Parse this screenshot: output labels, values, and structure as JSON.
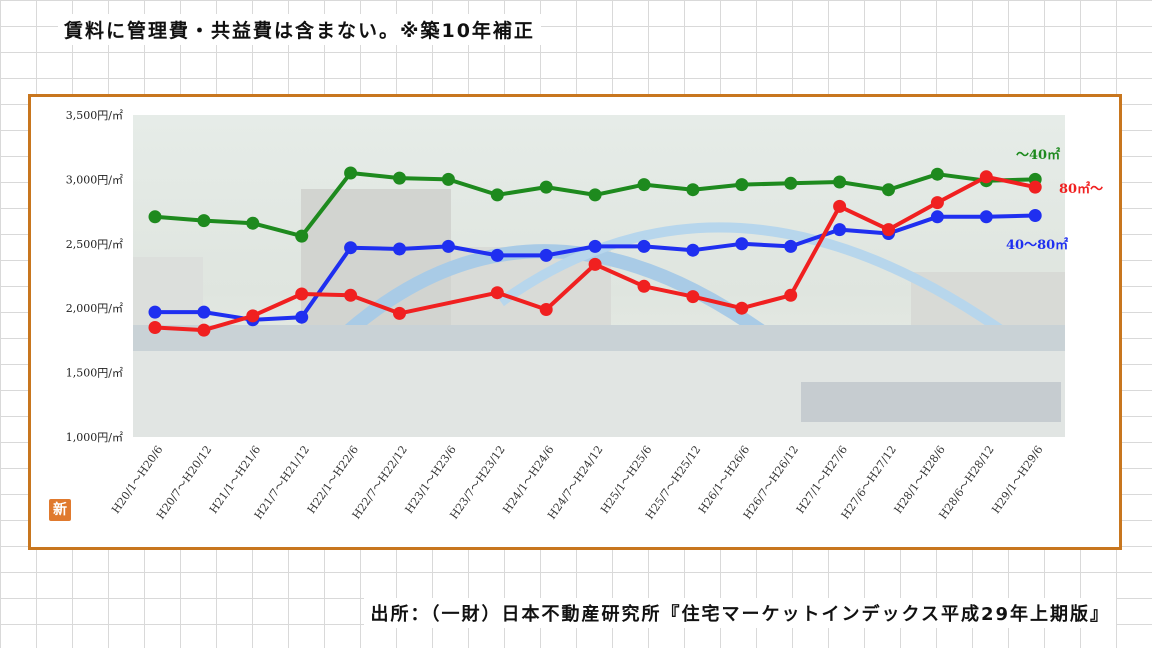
{
  "header": {
    "note": "賃料に管理費・共益費は含まない。※築10年補正"
  },
  "footer": {
    "source": "出所：（一財）日本不動産研究所『住宅マーケットインデックス平成29年上期版』"
  },
  "badge": {
    "label": "新"
  },
  "chart_data": {
    "type": "line",
    "title": "",
    "xlabel": "",
    "ylabel": "",
    "ylim": [
      1000,
      3500
    ],
    "yticks": [
      1000,
      1500,
      2000,
      2500,
      3000,
      3500
    ],
    "ytick_labels": [
      "1,000円/㎡",
      "1,500円/㎡",
      "2,000円/㎡",
      "2,500円/㎡",
      "3,000円/㎡",
      "3,500円/㎡"
    ],
    "grid": false,
    "legend": "inline-right",
    "categories": [
      "H20/1～H20/6",
      "H20/7～H20/12",
      "H21/1～H21/6",
      "H21/7～H21/12",
      "H22/1～H22/6",
      "H22/7～H22/12",
      "H23/1～H23/6",
      "H23/7～H23/12",
      "H24/1～H24/6",
      "H24/7～H24/12",
      "H25/1～H25/6",
      "H25/7～H25/12",
      "H26/1～H26/6",
      "H26/7～H26/12",
      "H27/1～H27/6",
      "H27/6～H27/12",
      "H28/1～H28/6",
      "H28/6～H28/12",
      "H29/1～H29/6"
    ],
    "series": [
      {
        "name": "～40㎡",
        "color": "#1e8a1e",
        "values": [
          2710,
          2680,
          2660,
          2560,
          3050,
          3010,
          3000,
          2880,
          2940,
          2880,
          2960,
          2920,
          2960,
          2970,
          2980,
          2920,
          3040,
          2990,
          3000
        ]
      },
      {
        "name": "40～80㎡",
        "color": "#1f2ff0",
        "values": [
          1970,
          1970,
          1910,
          1930,
          2470,
          2460,
          2480,
          2410,
          2410,
          2480,
          2480,
          2450,
          2500,
          2480,
          2610,
          2580,
          2710,
          2710,
          2720
        ]
      },
      {
        "name": "80㎡～",
        "color": "#f02020",
        "values": [
          1850,
          1830,
          1940,
          2110,
          2100,
          1960,
          null,
          2120,
          1990,
          2340,
          2170,
          2090,
          2000,
          2100,
          2790,
          2610,
          2820,
          3020,
          2940
        ]
      }
    ]
  }
}
